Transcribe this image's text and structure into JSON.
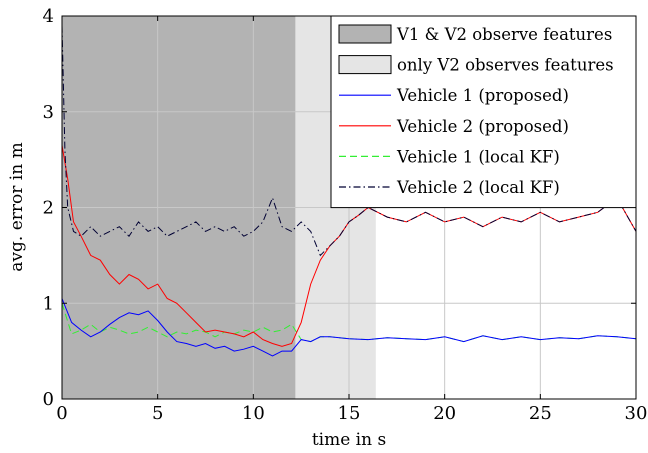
{
  "chart_data": {
    "type": "line",
    "title": "",
    "xlabel": "time in s",
    "ylabel": "avg. error in m",
    "xlim": [
      0,
      30
    ],
    "ylim": [
      0,
      4
    ],
    "xticks": [
      "0",
      "5",
      "10",
      "15",
      "20",
      "25",
      "30"
    ],
    "yticks": [
      "0",
      "1",
      "2",
      "3",
      "4"
    ],
    "grid": true,
    "legend_position": "top-right",
    "shaded_regions": [
      {
        "name": "V1 & V2 observe features",
        "x_start": 0.0,
        "x_end": 12.2,
        "color": "#b3b3b3"
      },
      {
        "name": "only V2 observes features",
        "x_start": 12.2,
        "x_end": 16.4,
        "color": "#e5e5e5"
      }
    ],
    "series": [
      {
        "name": "Vehicle 1 (proposed)",
        "color": "#0000ff",
        "dash": "solid",
        "x": [
          0,
          0.5,
          1,
          1.5,
          2,
          2.5,
          3,
          3.5,
          4,
          4.5,
          5,
          5.5,
          6,
          6.5,
          7,
          7.5,
          8,
          8.5,
          9,
          9.5,
          10,
          10.5,
          11,
          11.5,
          12,
          12.5,
          13,
          13.5,
          14,
          15,
          16,
          17,
          18,
          19,
          20,
          21,
          22,
          23,
          24,
          25,
          26,
          27,
          28,
          29,
          30
        ],
        "y": [
          1.05,
          0.8,
          0.72,
          0.65,
          0.7,
          0.78,
          0.85,
          0.9,
          0.88,
          0.92,
          0.82,
          0.7,
          0.6,
          0.58,
          0.55,
          0.58,
          0.53,
          0.55,
          0.5,
          0.52,
          0.55,
          0.5,
          0.45,
          0.5,
          0.5,
          0.62,
          0.6,
          0.65,
          0.65,
          0.63,
          0.62,
          0.64,
          0.63,
          0.62,
          0.65,
          0.6,
          0.66,
          0.62,
          0.65,
          0.62,
          0.64,
          0.63,
          0.66,
          0.65,
          0.63
        ]
      },
      {
        "name": "Vehicle 2 (proposed)",
        "color": "#ff0000",
        "dash": "solid",
        "x": [
          0,
          0.3,
          0.6,
          1,
          1.5,
          2,
          2.5,
          3,
          3.5,
          4,
          4.5,
          5,
          5.5,
          6,
          6.5,
          7,
          7.5,
          8,
          8.5,
          9,
          9.5,
          10,
          10.5,
          11,
          11.5,
          12,
          12.5,
          13,
          13.5,
          14,
          14.5,
          15,
          15.5,
          16,
          17,
          18,
          19,
          20,
          21,
          22,
          23,
          24,
          25,
          26,
          27,
          28,
          29,
          30
        ],
        "y": [
          2.65,
          2.3,
          1.85,
          1.7,
          1.5,
          1.45,
          1.3,
          1.2,
          1.3,
          1.25,
          1.15,
          1.2,
          1.05,
          1.0,
          0.9,
          0.8,
          0.7,
          0.72,
          0.7,
          0.68,
          0.65,
          0.7,
          0.62,
          0.58,
          0.55,
          0.58,
          0.8,
          1.2,
          1.45,
          1.6,
          1.7,
          1.85,
          1.92,
          2.0,
          1.9,
          1.85,
          1.95,
          1.85,
          1.9,
          1.8,
          1.9,
          1.85,
          1.95,
          1.85,
          1.9,
          1.95,
          2.1,
          1.75
        ]
      },
      {
        "name": "Vehicle 1 (local KF)",
        "color": "#33ee33",
        "dash": "dashed",
        "x": [
          0,
          0.5,
          1,
          1.5,
          2,
          2.5,
          3,
          3.5,
          4,
          4.5,
          5,
          5.5,
          6,
          6.5,
          7,
          7.5,
          8,
          8.5,
          9,
          9.5,
          10,
          10.5,
          11,
          11.5,
          12,
          12.5,
          13,
          13.5,
          14,
          15,
          16,
          17,
          18,
          19,
          20,
          21,
          22,
          23,
          24,
          25,
          26,
          27,
          28,
          29,
          30
        ],
        "y": [
          1.0,
          0.68,
          0.72,
          0.78,
          0.7,
          0.75,
          0.72,
          0.68,
          0.7,
          0.75,
          0.7,
          0.65,
          0.7,
          0.68,
          0.72,
          0.7,
          0.65,
          0.7,
          0.68,
          0.72,
          0.7,
          0.75,
          0.7,
          0.72,
          0.78,
          0.62,
          0.6,
          0.65,
          0.65,
          0.63,
          0.62,
          0.64,
          0.63,
          0.62,
          0.65,
          0.6,
          0.66,
          0.62,
          0.65,
          0.62,
          0.64,
          0.63,
          0.66,
          0.65,
          0.63
        ]
      },
      {
        "name": "Vehicle 2 (local KF)",
        "color": "#000033",
        "dash": "dashdot",
        "x": [
          0,
          0.15,
          0.3,
          0.6,
          1,
          1.5,
          2,
          2.5,
          3,
          3.5,
          4,
          4.5,
          5,
          5.5,
          6,
          6.5,
          7,
          7.5,
          8,
          8.5,
          9,
          9.5,
          10,
          10.5,
          11,
          11.5,
          12,
          12.5,
          13,
          13.5,
          14,
          14.5,
          15,
          15.5,
          16,
          17,
          18,
          19,
          20,
          21,
          22,
          23,
          24,
          25,
          26,
          27,
          28,
          29,
          30
        ],
        "y": [
          3.9,
          2.6,
          2.0,
          1.75,
          1.7,
          1.8,
          1.7,
          1.75,
          1.8,
          1.7,
          1.85,
          1.75,
          1.8,
          1.7,
          1.75,
          1.8,
          1.85,
          1.75,
          1.8,
          1.75,
          1.8,
          1.7,
          1.75,
          1.85,
          2.1,
          1.8,
          1.75,
          1.85,
          1.75,
          1.5,
          1.6,
          1.7,
          1.85,
          1.92,
          2.0,
          1.9,
          1.85,
          1.95,
          1.85,
          1.9,
          1.8,
          1.9,
          1.85,
          1.95,
          1.85,
          1.9,
          1.95,
          2.1,
          1.75
        ]
      }
    ]
  }
}
